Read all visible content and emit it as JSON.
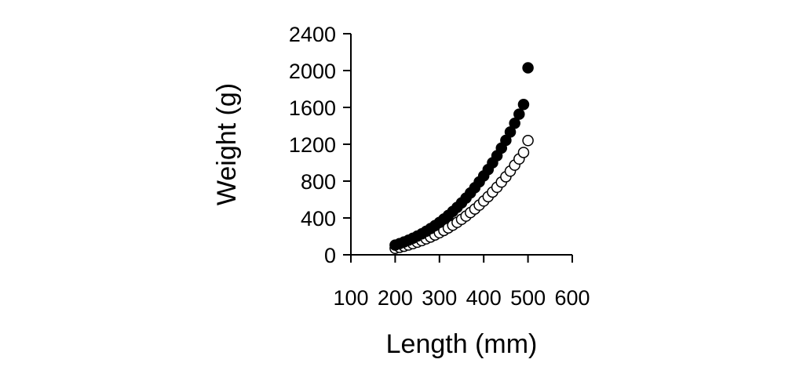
{
  "chart_data": {
    "type": "scatter",
    "xlabel": "Length (mm)",
    "ylabel": "Weight (g)",
    "xlim": [
      100,
      600
    ],
    "ylim": [
      0,
      2400
    ],
    "xticks": [
      "100",
      "200",
      "300",
      "400",
      "500",
      "600"
    ],
    "yticks": [
      "0",
      "400",
      "800",
      "1200",
      "1600",
      "2000",
      "2400"
    ],
    "grid": false,
    "colors": {
      "axis": "#000000",
      "filled_marker": "#000000",
      "hollow_marker": "#ffffff"
    },
    "series": [
      {
        "marker": "filled-circle",
        "x": [
          200,
          210,
          220,
          230,
          240,
          250,
          260,
          270,
          280,
          290,
          300,
          310,
          320,
          330,
          340,
          350,
          360,
          370,
          380,
          390,
          400,
          410,
          420,
          430,
          440,
          450,
          460,
          470,
          480,
          490,
          500
        ],
        "y": [
          105,
          121,
          139,
          158,
          180,
          203,
          228,
          255,
          285,
          317,
          351,
          388,
          428,
          470,
          515,
          564,
          616,
          671,
          729,
          791,
          856,
          926,
          999,
          1076,
          1158,
          1243,
          1333,
          1428,
          1527,
          1632,
          2030
        ]
      },
      {
        "marker": "hollow-circle",
        "x": [
          200,
          210,
          220,
          230,
          240,
          250,
          260,
          270,
          280,
          290,
          300,
          310,
          320,
          330,
          340,
          350,
          360,
          370,
          380,
          390,
          400,
          410,
          420,
          430,
          440,
          450,
          460,
          470,
          480,
          490,
          500
        ],
        "y": [
          70,
          81,
          93,
          106,
          121,
          137,
          154,
          173,
          193,
          215,
          239,
          264,
          292,
          321,
          352,
          385,
          420,
          458,
          497,
          539,
          584,
          631,
          681,
          733,
          789,
          847,
          908,
          973,
          1040,
          1111,
          1240
        ]
      }
    ]
  }
}
